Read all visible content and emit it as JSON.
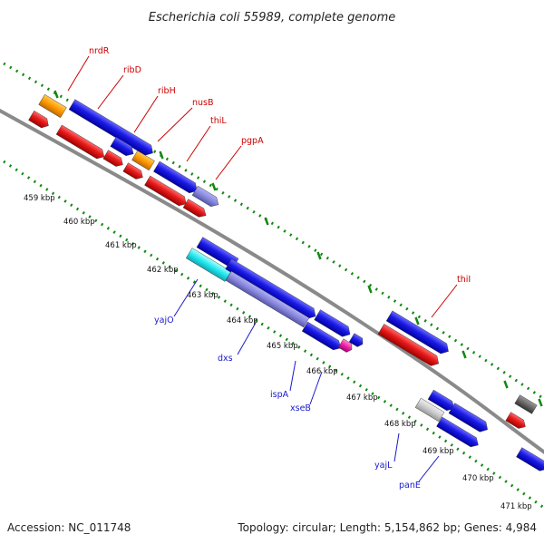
{
  "title": "Escherichia coli 55989, complete genome",
  "footer": {
    "accession": "Accession: NC_011748",
    "topology": "Topology: circular; Length: 5,154,862 bp; Genes: 4,984"
  },
  "colors": {
    "backbone": "#888888",
    "tick_dots": "#118811",
    "forward_cds": "#1a1ae6",
    "reverse_cds": "#e61a1a",
    "other_orange": "#ff9900",
    "cyan": "#22e8f0",
    "magenta": "#ee22aa",
    "grey": "#666666",
    "light_grey": "#cccccc",
    "lavender": "#8888dd",
    "label_red": "#cc0000",
    "label_blue": "#1a1acc"
  },
  "kbp_ticks": [
    "459 kbp",
    "460 kbp",
    "461 kbp",
    "462 kbp",
    "463 kbp",
    "464 kbp",
    "465 kbp",
    "466 kbp",
    "467 kbp",
    "468 kbp",
    "469 kbp",
    "470 kbp",
    "471 kbp"
  ],
  "gene_labels_top": [
    "nrdR",
    "ribD",
    "ribH",
    "nusB",
    "thiL",
    "pgpA",
    "thiI"
  ],
  "gene_labels_bottom": [
    "yajO",
    "dxs",
    "ispA",
    "xseB",
    "yajL",
    "panE"
  ]
}
